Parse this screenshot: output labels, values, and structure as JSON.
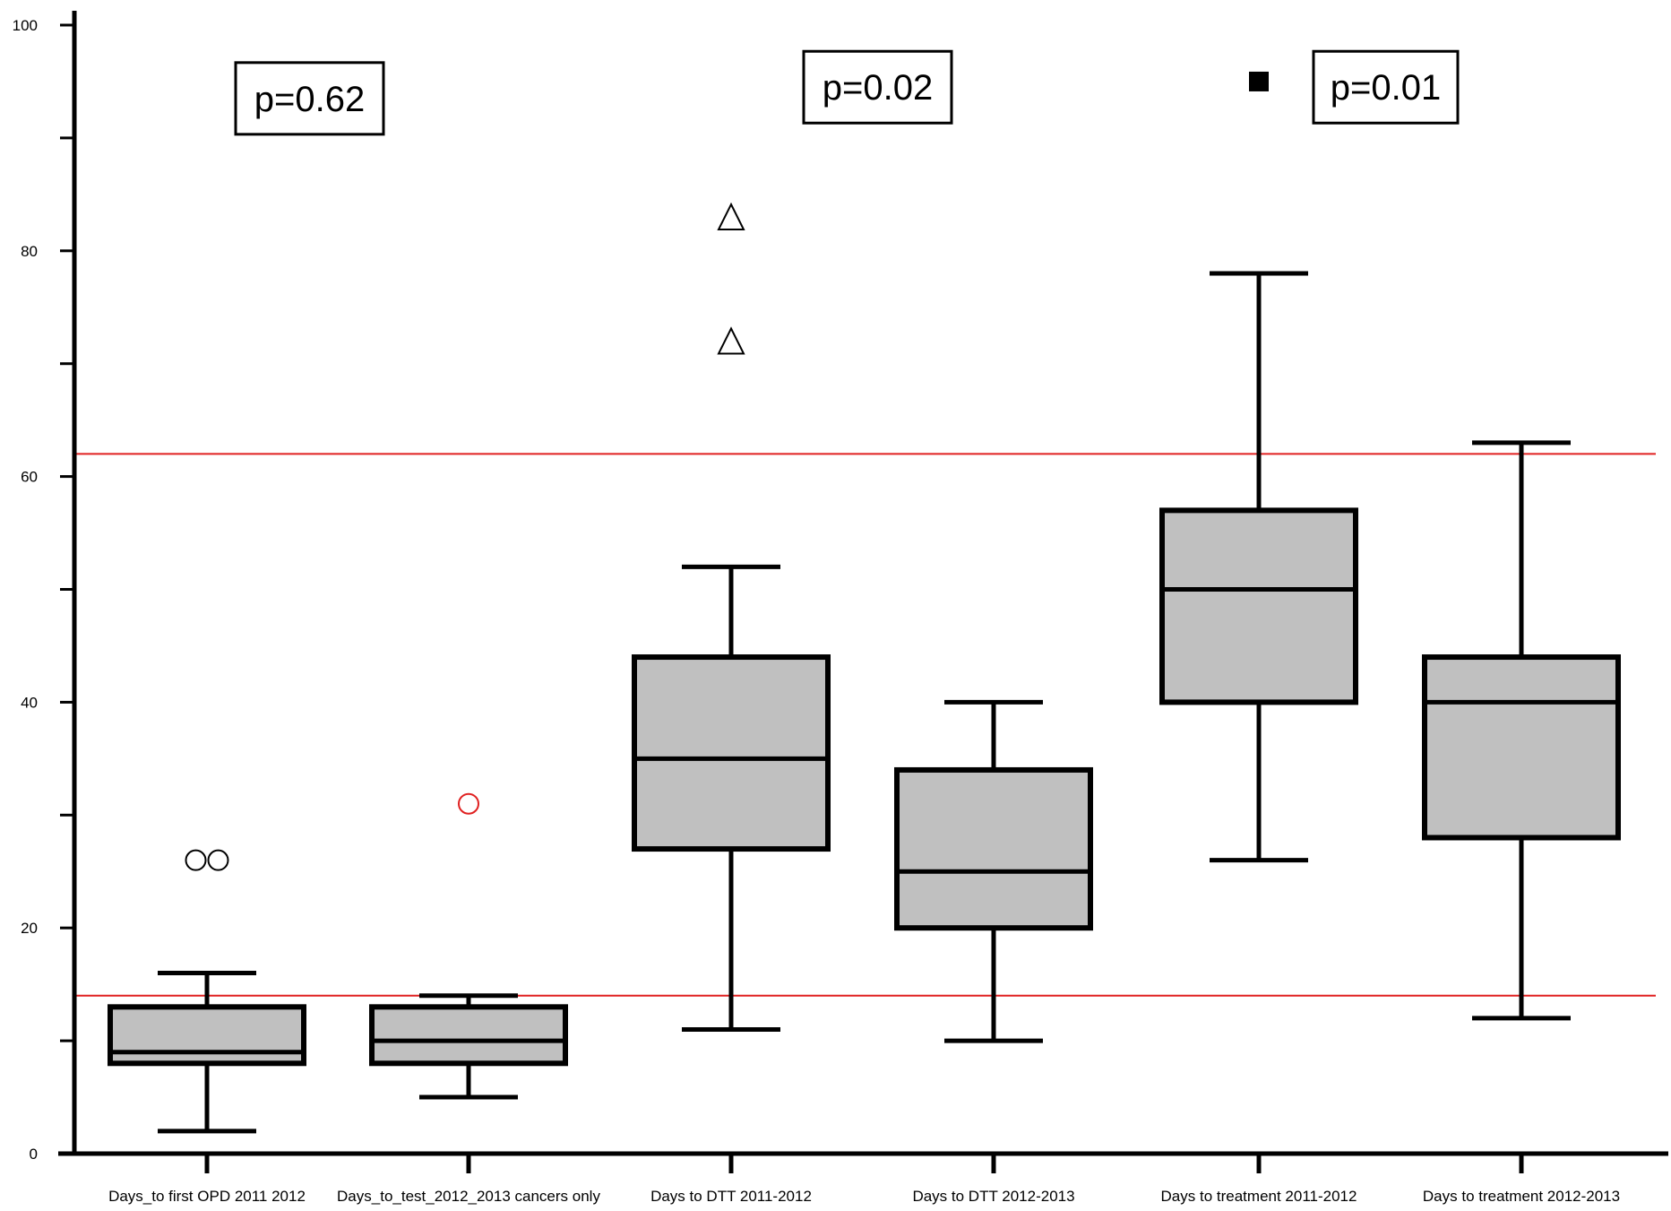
{
  "chart_data": {
    "type": "box",
    "title": "",
    "xlabel": "",
    "ylabel": "",
    "ylim": [
      0,
      100
    ],
    "yticks": [
      0,
      20,
      40,
      60,
      80,
      100
    ],
    "grid": false,
    "box_color": "#c0c0c0",
    "reference_lines": [
      {
        "y": 14,
        "color": "#e02020"
      },
      {
        "y": 62,
        "color": "#e02020"
      }
    ],
    "categories": [
      "Days_to first OPD 2011 2012",
      "Days_to_test_2012_2013 cancers only",
      "Days to DTT 2011-2012",
      "Days to DTT 2012-2013",
      "Days to treatment 2011-2012",
      "Days to treatment 2012-2013"
    ],
    "boxes": [
      {
        "whisker_low": 2,
        "q1": 8,
        "median": 9,
        "q3": 13,
        "whisker_high": 16,
        "outliers": [
          {
            "y": 26,
            "marker": "circle",
            "color": "#000000"
          },
          {
            "y": 26,
            "marker": "circle",
            "color": "#000000"
          }
        ]
      },
      {
        "whisker_low": 5,
        "q1": 8,
        "median": 10,
        "q3": 13,
        "whisker_high": 14,
        "outliers": [
          {
            "y": 31,
            "marker": "circle",
            "color": "#e02020"
          }
        ]
      },
      {
        "whisker_low": 11,
        "q1": 27,
        "median": 35,
        "q3": 44,
        "whisker_high": 52,
        "outliers": [
          {
            "y": 72,
            "marker": "triangle",
            "color": "#000000"
          },
          {
            "y": 83,
            "marker": "triangle",
            "color": "#000000"
          }
        ]
      },
      {
        "whisker_low": 10,
        "q1": 20,
        "median": 25,
        "q3": 34,
        "whisker_high": 40,
        "outliers": []
      },
      {
        "whisker_low": 26,
        "q1": 40,
        "median": 50,
        "q3": 57,
        "whisker_high": 78,
        "outliers": [
          {
            "y": 95,
            "marker": "square",
            "color": "#000000"
          }
        ]
      },
      {
        "whisker_low": 12,
        "q1": 28,
        "median": 40,
        "q3": 44,
        "whisker_high": 63,
        "outliers": []
      }
    ],
    "annotations": [
      {
        "text": "p=0.62",
        "y": 93.5
      },
      {
        "text": "p=0.02",
        "y": 94.5
      },
      {
        "text": "p=0.01",
        "y": 94.5
      }
    ]
  }
}
